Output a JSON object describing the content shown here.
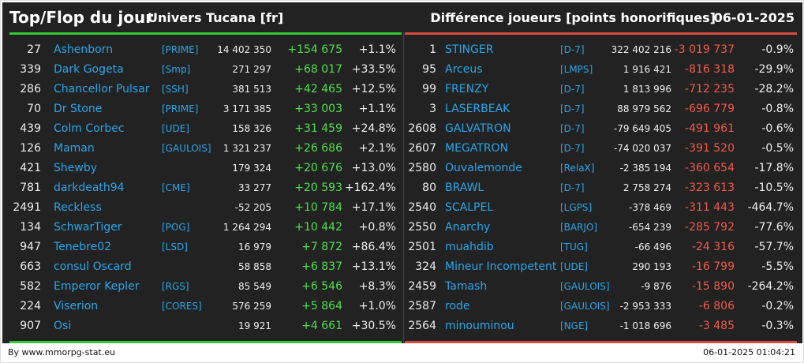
{
  "header": {
    "title": "Top/Flop du jour",
    "subtitle": "Univers Tucana [fr]",
    "metric": "Différence joueurs [points honorifiques]",
    "date": "06-01-2025"
  },
  "colors": {
    "accent_top": "#33cc33",
    "accent_flop": "#d94a3f",
    "name": "#2aa6ea",
    "positive": "#4fe04f",
    "negative": "#f05a4a",
    "background": "#222222"
  },
  "top": [
    {
      "rank": "27",
      "name": "Ashenborn",
      "tag": "[PRIME]",
      "points": "14 402 350",
      "diff": "+154 675",
      "pct": "+1.1%"
    },
    {
      "rank": "339",
      "name": "Dark Gogeta",
      "tag": "[Smp]",
      "points": "271 297",
      "diff": "+68 017",
      "pct": "+33.5%"
    },
    {
      "rank": "286",
      "name": "Chancellor Pulsar",
      "tag": "[SSH]",
      "points": "381 513",
      "diff": "+42 465",
      "pct": "+12.5%"
    },
    {
      "rank": "70",
      "name": "Dr Stone",
      "tag": "[PRIME]",
      "points": "3 171 385",
      "diff": "+33 003",
      "pct": "+1.1%"
    },
    {
      "rank": "439",
      "name": "Colm Corbec",
      "tag": "[UDE]",
      "points": "158 326",
      "diff": "+31 459",
      "pct": "+24.8%"
    },
    {
      "rank": "126",
      "name": "Maman",
      "tag": "[GAULOIS]",
      "points": "1 321 237",
      "diff": "+26 686",
      "pct": "+2.1%"
    },
    {
      "rank": "421",
      "name": "Shewby",
      "tag": "",
      "points": "179 324",
      "diff": "+20 676",
      "pct": "+13.0%"
    },
    {
      "rank": "781",
      "name": "darkdeath94",
      "tag": "[CME]",
      "points": "33 277",
      "diff": "+20 593",
      "pct": "+162.4%"
    },
    {
      "rank": "2491",
      "name": "Reckless",
      "tag": "",
      "points": "-52 205",
      "diff": "+10 784",
      "pct": "+17.1%"
    },
    {
      "rank": "134",
      "name": "SchwarTiger",
      "tag": "[POG]",
      "points": "1 264 294",
      "diff": "+10 442",
      "pct": "+0.8%"
    },
    {
      "rank": "947",
      "name": "Tenebre02",
      "tag": "[LSD]",
      "points": "16 979",
      "diff": "+7 872",
      "pct": "+86.4%"
    },
    {
      "rank": "663",
      "name": "consul Oscard",
      "tag": "",
      "points": "58 858",
      "diff": "+6 837",
      "pct": "+13.1%"
    },
    {
      "rank": "582",
      "name": "Emperor Kepler",
      "tag": "[RGS]",
      "points": "85 549",
      "diff": "+6 546",
      "pct": "+8.3%"
    },
    {
      "rank": "224",
      "name": "Viserion",
      "tag": "[CORES]",
      "points": "576 259",
      "diff": "+5 864",
      "pct": "+1.0%"
    },
    {
      "rank": "907",
      "name": "Osi",
      "tag": "",
      "points": "19 921",
      "diff": "+4 661",
      "pct": "+30.5%"
    }
  ],
  "flop": [
    {
      "rank": "1",
      "name": "STINGER",
      "tag": "[D-7]",
      "points": "322 402 216",
      "diff": "-3 019 737",
      "pct": "-0.9%"
    },
    {
      "rank": "95",
      "name": "Arceus",
      "tag": "[LMPS]",
      "points": "1 916 421",
      "diff": "-816 318",
      "pct": "-29.9%"
    },
    {
      "rank": "99",
      "name": "FRENZY",
      "tag": "[D-7]",
      "points": "1 813 996",
      "diff": "-712 235",
      "pct": "-28.2%"
    },
    {
      "rank": "3",
      "name": "LASERBEAK",
      "tag": "[D-7]",
      "points": "88 979 562",
      "diff": "-696 779",
      "pct": "-0.8%"
    },
    {
      "rank": "2608",
      "name": "GALVATRON",
      "tag": "[D-7]",
      "points": "-79 649 405",
      "diff": "-491 961",
      "pct": "-0.6%"
    },
    {
      "rank": "2607",
      "name": "MEGATRON",
      "tag": "[D-7]",
      "points": "-74 020 037",
      "diff": "-391 520",
      "pct": "-0.5%"
    },
    {
      "rank": "2580",
      "name": "Ouvalemonde",
      "tag": "[RelaX]",
      "points": "-2 385 194",
      "diff": "-360 654",
      "pct": "-17.8%"
    },
    {
      "rank": "80",
      "name": "BRAWL",
      "tag": "[D-7]",
      "points": "2 758 274",
      "diff": "-323 613",
      "pct": "-10.5%"
    },
    {
      "rank": "2540",
      "name": "SCALPEL",
      "tag": "[LGPS]",
      "points": "-378 469",
      "diff": "-311 443",
      "pct": "-464.7%"
    },
    {
      "rank": "2550",
      "name": "Anarchy",
      "tag": "[BARJO]",
      "points": "-654 239",
      "diff": "-285 792",
      "pct": "-77.6%"
    },
    {
      "rank": "2501",
      "name": "muahdib",
      "tag": "[TUG]",
      "points": "-66 496",
      "diff": "-24 316",
      "pct": "-57.7%"
    },
    {
      "rank": "324",
      "name": "Mineur Incompetent",
      "tag": "[UDE]",
      "points": "290 193",
      "diff": "-16 799",
      "pct": "-5.5%"
    },
    {
      "rank": "2459",
      "name": "Tamash",
      "tag": "[GAULOIS]",
      "points": "-9 876",
      "diff": "-15 890",
      "pct": "-264.2%"
    },
    {
      "rank": "2587",
      "name": "rode",
      "tag": "[GAULOIS]",
      "points": "-2 953 333",
      "diff": "-6 806",
      "pct": "-0.2%"
    },
    {
      "rank": "2564",
      "name": "minouminou",
      "tag": "[NGE]",
      "points": "-1 018 696",
      "diff": "-3 485",
      "pct": "-0.3%"
    }
  ],
  "footer": {
    "credit": "By www.mmorpg-stat.eu",
    "timestamp": "06-01-2025 01:04:21"
  }
}
